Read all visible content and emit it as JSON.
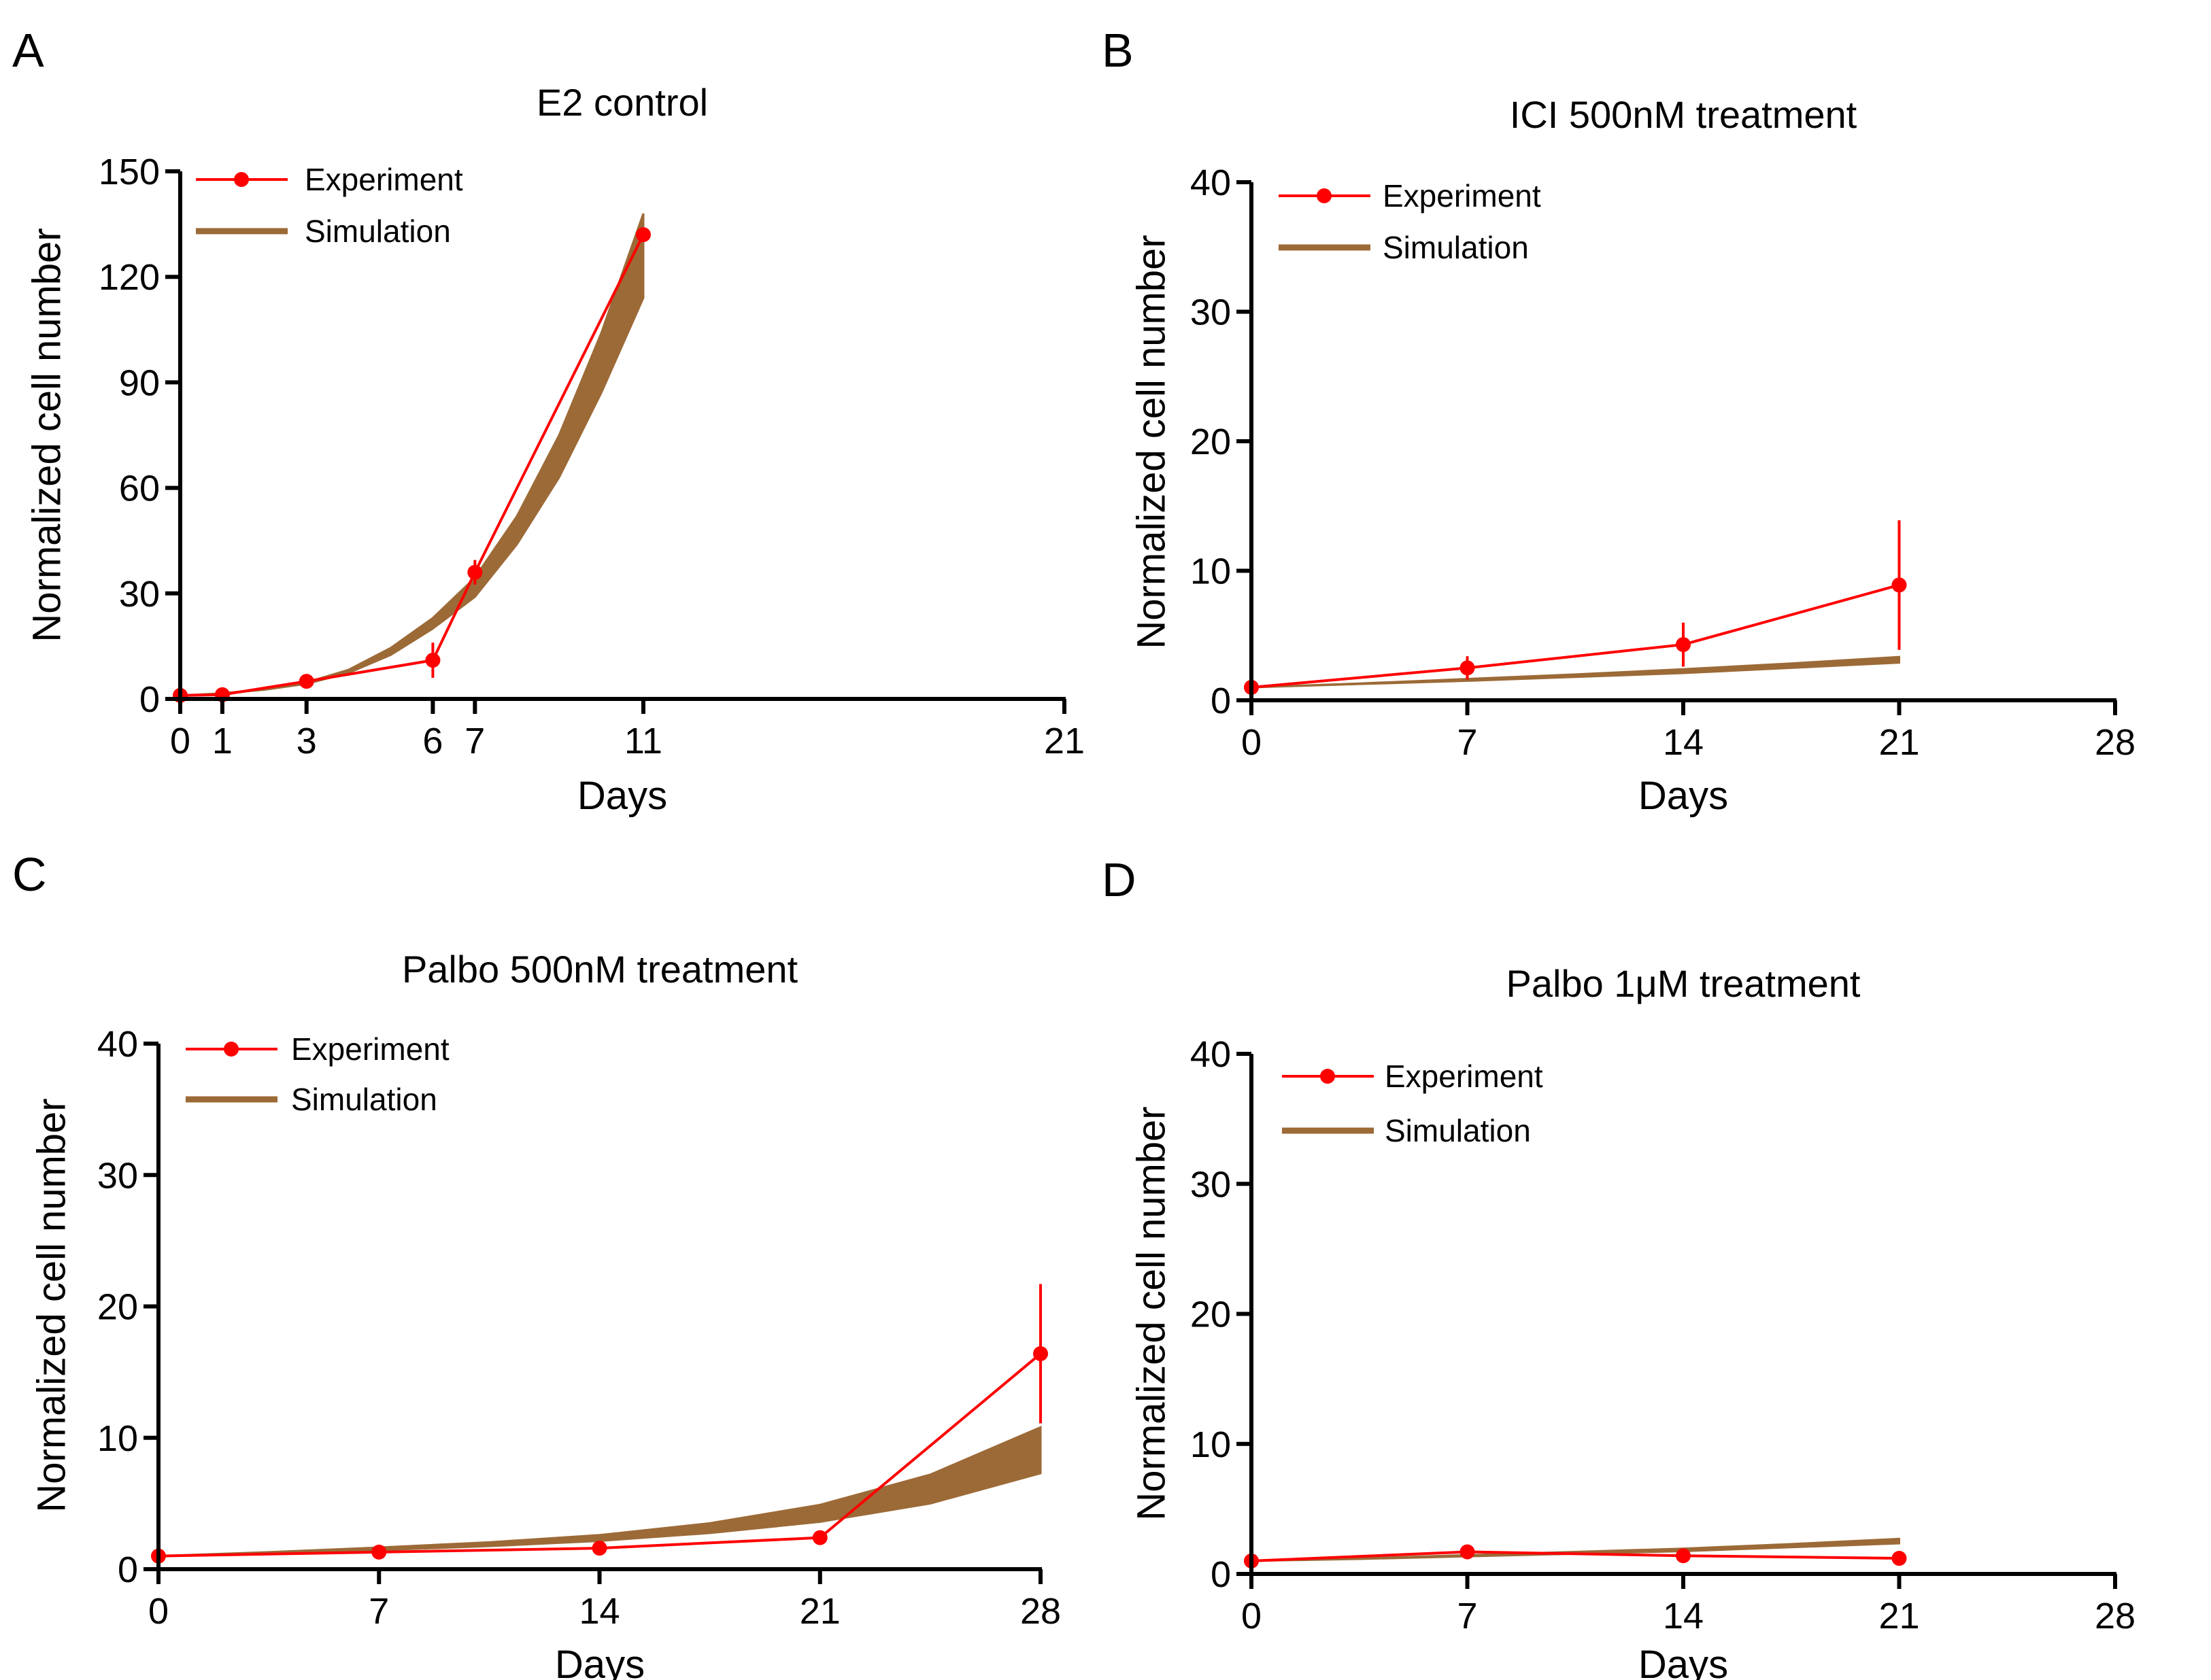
{
  "colors": {
    "experiment": "#ff0000",
    "simulation": "#9c6a37",
    "axis": "#000000"
  },
  "chart_data": [
    {
      "panel_label": "A",
      "type": "line",
      "title": "E2 control",
      "xlabel": "Days",
      "ylabel": "Normalized cell number",
      "xlim": [
        0,
        21
      ],
      "ylim": [
        0,
        150
      ],
      "xticks": [
        0,
        1,
        3,
        6,
        7,
        11,
        21
      ],
      "yticks": [
        0,
        30,
        60,
        90,
        120,
        150
      ],
      "legend": {
        "position": "top-left",
        "experiment_label": "Experiment",
        "simulation_label": "Simulation"
      },
      "experiment": {
        "x": [
          0,
          1,
          3,
          6,
          7,
          11
        ],
        "y": [
          1,
          1.2,
          5,
          11,
          36,
          132
        ],
        "err": [
          0.3,
          0.4,
          1,
          5,
          3.5,
          2
        ]
      },
      "simulation_band": {
        "x": [
          0,
          1,
          2,
          3,
          4,
          5,
          6,
          7,
          8,
          9,
          10,
          11
        ],
        "lower": [
          1,
          1.5,
          2.6,
          4.3,
          7.4,
          12.5,
          20,
          29,
          44,
          63,
          87,
          114
        ],
        "upper": [
          1,
          1.6,
          2.8,
          4.7,
          8.3,
          14.5,
          23,
          34.5,
          52,
          75,
          104,
          138
        ]
      }
    },
    {
      "panel_label": "B",
      "type": "line",
      "title": "ICI 500nM treatment",
      "xlabel": "Days",
      "ylabel": "Normalized cell number",
      "xlim": [
        0,
        28
      ],
      "ylim": [
        0,
        40
      ],
      "xticks": [
        0,
        7,
        14,
        21,
        28
      ],
      "yticks": [
        0,
        10,
        20,
        30,
        40
      ],
      "legend": {
        "position": "top-left",
        "experiment_label": "Experiment",
        "simulation_label": "Simulation"
      },
      "experiment": {
        "x": [
          0,
          7,
          14,
          21
        ],
        "y": [
          1,
          2.5,
          4.3,
          8.9
        ],
        "err": [
          0.2,
          0.9,
          1.7,
          5
        ]
      },
      "simulation_band": {
        "x": [
          0,
          3.5,
          7,
          10.5,
          14,
          17.5,
          21
        ],
        "lower": [
          1,
          1.25,
          1.5,
          1.8,
          2.1,
          2.5,
          2.9
        ],
        "upper": [
          1,
          1.3,
          1.65,
          2.0,
          2.4,
          2.85,
          3.35
        ]
      }
    },
    {
      "panel_label": "C",
      "type": "line",
      "title": "Palbo 500nM treatment",
      "xlabel": "Days",
      "ylabel": "Normalized cell number",
      "xlim": [
        0,
        28
      ],
      "ylim": [
        0,
        40
      ],
      "xticks": [
        0,
        7,
        14,
        21,
        28
      ],
      "yticks": [
        0,
        10,
        20,
        30,
        40
      ],
      "legend": {
        "position": "top-left",
        "experiment_label": "Experiment",
        "simulation_label": "Simulation"
      },
      "experiment": {
        "x": [
          0,
          7,
          14,
          21,
          28
        ],
        "y": [
          1,
          1.3,
          1.6,
          2.4,
          16.4
        ],
        "err": [
          0.1,
          0.2,
          0.2,
          0.3,
          5.3
        ]
      },
      "simulation_band": {
        "x": [
          0,
          3.5,
          7,
          10.5,
          14,
          17.5,
          21,
          24.5,
          28
        ],
        "lower": [
          1,
          1.2,
          1.45,
          1.75,
          2.15,
          2.75,
          3.6,
          5.0,
          7.3
        ],
        "upper": [
          1,
          1.3,
          1.65,
          2.05,
          2.6,
          3.5,
          4.9,
          7.2,
          10.8
        ]
      }
    },
    {
      "panel_label": "D",
      "type": "line",
      "title": "Palbo 1μM treatment",
      "xlabel": "Days",
      "ylabel": "Normalized cell number",
      "xlim": [
        0,
        28
      ],
      "ylim": [
        0,
        40
      ],
      "xticks": [
        0,
        7,
        14,
        21,
        28
      ],
      "yticks": [
        0,
        10,
        20,
        30,
        40
      ],
      "legend": {
        "position": "top-left",
        "experiment_label": "Experiment",
        "simulation_label": "Simulation"
      },
      "experiment": {
        "x": [
          0,
          7,
          14,
          21
        ],
        "y": [
          1,
          1.7,
          1.4,
          1.2
        ],
        "err": [
          0.1,
          0.2,
          0.2,
          0.1
        ]
      },
      "simulation_band": {
        "x": [
          0,
          3.5,
          7,
          10.5,
          14,
          17.5,
          21
        ],
        "lower": [
          1,
          1.15,
          1.35,
          1.55,
          1.75,
          2.05,
          2.35
        ],
        "upper": [
          1,
          1.2,
          1.45,
          1.7,
          1.95,
          2.3,
          2.7
        ]
      }
    }
  ]
}
